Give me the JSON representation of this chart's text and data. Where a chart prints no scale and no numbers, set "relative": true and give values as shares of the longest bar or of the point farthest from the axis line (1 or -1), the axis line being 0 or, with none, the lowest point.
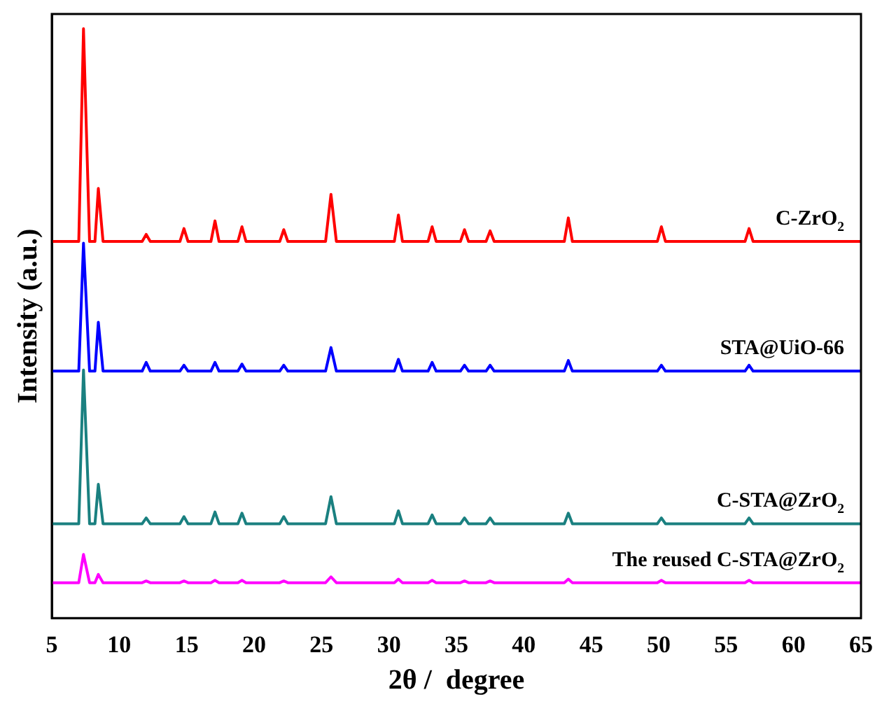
{
  "chart_data": {
    "type": "line",
    "xlabel": "2θ /  degree",
    "ylabel": "Intensity (a.u.)",
    "relative": true,
    "grid": false,
    "legend": false,
    "marker": "none",
    "line_style": "solid",
    "xlim": [
      5,
      65
    ],
    "xticks": [
      5,
      10,
      15,
      20,
      25,
      30,
      35,
      40,
      45,
      50,
      55,
      60,
      65
    ],
    "x": [
      5,
      7.0,
      7.35,
      7.8,
      8.2,
      8.45,
      8.8,
      11.7,
      12,
      12.3,
      14.5,
      14.8,
      15.1,
      16.8,
      17.1,
      17.4,
      18.8,
      19.1,
      19.4,
      21.9,
      22.2,
      22.5,
      25.3,
      25.7,
      26.1,
      30.4,
      30.7,
      31.0,
      32.9,
      33.2,
      33.5,
      35.3,
      35.6,
      35.9,
      37.2,
      37.5,
      37.8,
      43.0,
      43.3,
      43.6,
      49.9,
      50.2,
      50.5,
      56.4,
      56.7,
      57.0,
      65
    ],
    "series": [
      {
        "name": "C-ZrO$_{2}$",
        "color": "#ff0000",
        "values": [
          0.639,
          0.639,
          1.0,
          0.639,
          0.639,
          0.729,
          0.639,
          0.639,
          0.651,
          0.639,
          0.639,
          0.661,
          0.639,
          0.639,
          0.674,
          0.639,
          0.639,
          0.664,
          0.639,
          0.639,
          0.659,
          0.639,
          0.639,
          0.719,
          0.639,
          0.639,
          0.684,
          0.639,
          0.639,
          0.664,
          0.639,
          0.639,
          0.659,
          0.639,
          0.639,
          0.657,
          0.639,
          0.639,
          0.679,
          0.639,
          0.639,
          0.664,
          0.639,
          0.639,
          0.661,
          0.639,
          0.639
        ]
      },
      {
        "name": "STA@UiO-66",
        "color": "#0000ff",
        "values": [
          0.419,
          0.419,
          0.636,
          0.419,
          0.419,
          0.502,
          0.419,
          0.419,
          0.434,
          0.419,
          0.419,
          0.429,
          0.419,
          0.419,
          0.434,
          0.419,
          0.419,
          0.431,
          0.419,
          0.419,
          0.429,
          0.419,
          0.419,
          0.459,
          0.419,
          0.419,
          0.439,
          0.419,
          0.419,
          0.434,
          0.419,
          0.419,
          0.429,
          0.419,
          0.419,
          0.429,
          0.419,
          0.419,
          0.437,
          0.419,
          0.419,
          0.429,
          0.419,
          0.419,
          0.429,
          0.419,
          0.419
        ]
      },
      {
        "name": "C-STA@ZrO$_{2}$",
        "color": "#1a8080",
        "values": [
          0.16,
          0.16,
          0.421,
          0.16,
          0.16,
          0.227,
          0.16,
          0.16,
          0.17,
          0.16,
          0.16,
          0.172,
          0.16,
          0.16,
          0.18,
          0.16,
          0.16,
          0.178,
          0.16,
          0.16,
          0.172,
          0.16,
          0.16,
          0.206,
          0.16,
          0.16,
          0.182,
          0.16,
          0.16,
          0.175,
          0.16,
          0.16,
          0.17,
          0.16,
          0.16,
          0.17,
          0.16,
          0.16,
          0.178,
          0.16,
          0.16,
          0.17,
          0.16,
          0.16,
          0.17,
          0.16,
          0.16
        ]
      },
      {
        "name": "The reused C-STA@ZrO$_{2}$",
        "color": "#ff00ff",
        "values": [
          0.06,
          0.06,
          0.108,
          0.06,
          0.06,
          0.074,
          0.06,
          0.06,
          0.063,
          0.06,
          0.06,
          0.063,
          0.06,
          0.06,
          0.064,
          0.06,
          0.06,
          0.064,
          0.06,
          0.06,
          0.063,
          0.06,
          0.06,
          0.07,
          0.06,
          0.06,
          0.066,
          0.06,
          0.06,
          0.064,
          0.06,
          0.06,
          0.063,
          0.06,
          0.06,
          0.063,
          0.06,
          0.06,
          0.066,
          0.06,
          0.06,
          0.064,
          0.06,
          0.06,
          0.064,
          0.06,
          0.06
        ]
      }
    ]
  }
}
